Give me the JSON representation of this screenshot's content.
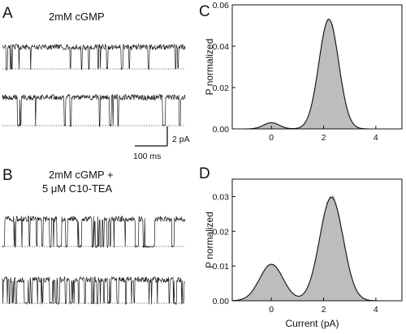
{
  "figure": {
    "panel_labels": {
      "A": "A",
      "B": "B",
      "C": "C",
      "D": "D"
    },
    "condition_A": "2mM cGMP",
    "condition_B_line1": "2mM cGMP +",
    "condition_B_line2": "5 μM C10-TEA",
    "scalebar": {
      "current_label": "2 pA",
      "time_label": "100 ms"
    }
  },
  "chart_data": [
    {
      "panel": "C",
      "type": "area",
      "xlabel": "",
      "ylabel": "P normalized",
      "xlim": [
        -1.5,
        5
      ],
      "ylim": [
        0,
        0.06
      ],
      "xticks": [
        0,
        2,
        4
      ],
      "yticks": [
        0.0,
        0.02,
        0.04,
        0.06
      ],
      "ytick_labels": [
        "0.00",
        "0.02",
        "0.04",
        "0.06"
      ],
      "fit_components": [
        {
          "mean": 0.0,
          "sd": 0.3,
          "amplitude": 0.003
        },
        {
          "mean": 2.2,
          "sd": 0.38,
          "amplitude": 0.053
        }
      ]
    },
    {
      "panel": "D",
      "type": "area",
      "xlabel": "Current (pA)",
      "ylabel": "P normalized",
      "xlim": [
        -1.5,
        5
      ],
      "ylim": [
        0,
        0.035
      ],
      "xticks": [
        0,
        2,
        4
      ],
      "yticks": [
        0.0,
        0.01,
        0.02,
        0.03
      ],
      "ytick_labels": [
        "0.00",
        "0.01",
        "0.02",
        "0.03"
      ],
      "fit_components": [
        {
          "mean": 0.0,
          "sd": 0.45,
          "amplitude": 0.0105
        },
        {
          "mean": 2.3,
          "sd": 0.45,
          "amplitude": 0.0298
        }
      ]
    }
  ]
}
